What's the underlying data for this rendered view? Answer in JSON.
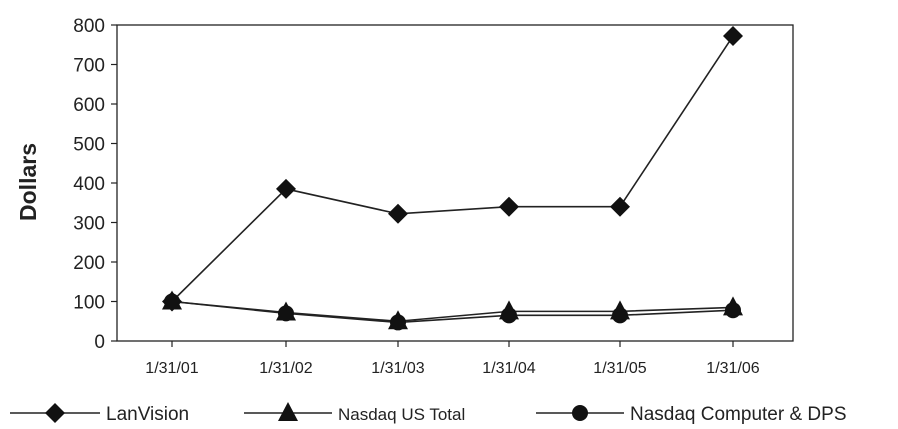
{
  "chart_data": {
    "type": "line",
    "title": "",
    "xlabel": "",
    "ylabel": "Dollars",
    "categories": [
      "1/31/01",
      "1/31/02",
      "1/31/03",
      "1/31/04",
      "1/31/05",
      "1/31/06"
    ],
    "ylim": [
      0,
      800
    ],
    "yticks": [
      0,
      100,
      200,
      300,
      400,
      500,
      600,
      700,
      800
    ],
    "grid": false,
    "legend_position": "bottom",
    "series": [
      {
        "name": "LanVision",
        "marker": "diamond",
        "values": [
          100,
          385,
          322,
          340,
          340,
          772
        ]
      },
      {
        "name": "Nasdaq US Total",
        "marker": "triangle",
        "values": [
          100,
          72,
          50,
          75,
          75,
          85
        ]
      },
      {
        "name": "Nasdaq Computer & DPS",
        "marker": "circle",
        "values": [
          100,
          70,
          47,
          65,
          65,
          78
        ]
      }
    ]
  }
}
